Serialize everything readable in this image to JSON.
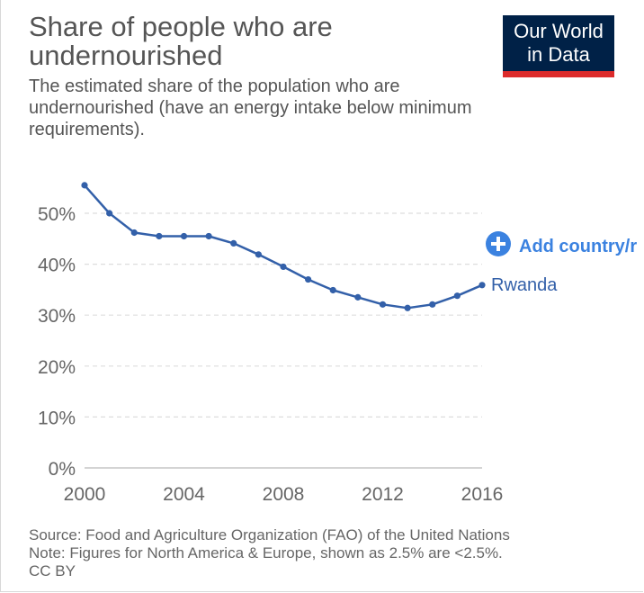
{
  "header": {
    "title": "Share of people who are undernourished",
    "subtitle": "The estimated share of the population who are undernourished (have an energy intake below minimum requirements)."
  },
  "logo": {
    "line1": "Our World",
    "line2": "in Data",
    "bg_color": "#002147",
    "bar_color": "#dc2b2b"
  },
  "add_country": {
    "label": "Add country/r",
    "icon": "plus-circle-icon",
    "color": "#3b82e0"
  },
  "footer": {
    "source": "Source: Food and Agriculture Organization (FAO) of the United Nations",
    "note": "Note: Figures for North America & Europe, shown as 2.5% are <2.5%.",
    "license": "CC BY"
  },
  "chart_data": {
    "type": "line",
    "title": "Share of people who are undernourished",
    "xlabel": "",
    "ylabel": "",
    "xlim": [
      2000,
      2016
    ],
    "ylim": [
      0,
      50
    ],
    "x_ticks": [
      2000,
      2004,
      2008,
      2012,
      2016
    ],
    "y_ticks": [
      0,
      10,
      20,
      30,
      40,
      50
    ],
    "y_tick_labels": [
      "0%",
      "10%",
      "20%",
      "30%",
      "40%",
      "50%"
    ],
    "grid": true,
    "series": [
      {
        "name": "Rwanda",
        "color": "#3360a9",
        "x": [
          2000,
          2001,
          2002,
          2003,
          2004,
          2005,
          2006,
          2007,
          2008,
          2009,
          2010,
          2011,
          2012,
          2013,
          2014,
          2015,
          2016
        ],
        "values": [
          55.5,
          50.0,
          46.2,
          45.5,
          45.5,
          45.5,
          44.1,
          41.9,
          39.5,
          37.0,
          34.9,
          33.5,
          32.1,
          31.4,
          32.1,
          33.8,
          35.9
        ]
      }
    ]
  }
}
